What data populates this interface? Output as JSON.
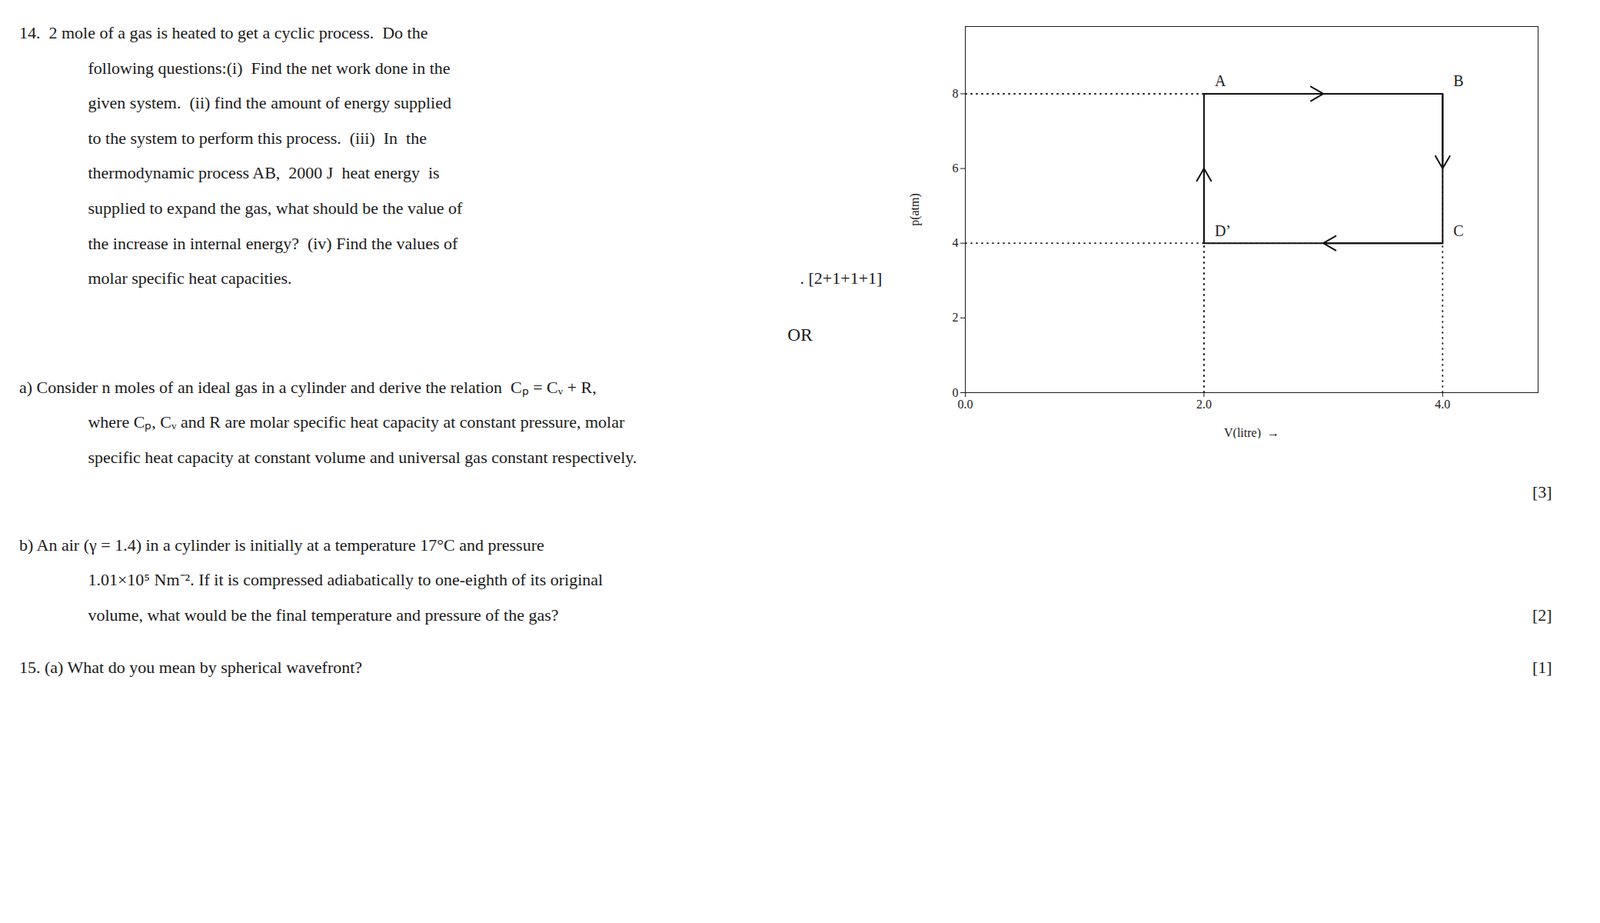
{
  "chart_data": {
    "type": "line",
    "xlabel": "V(litre)  →",
    "ylabel": "p(atm)",
    "xlim": [
      0,
      4.8
    ],
    "ylim": [
      0,
      9.8
    ],
    "xticks": [
      0,
      2,
      4
    ],
    "yticks": [
      0,
      2,
      4,
      6,
      8
    ],
    "x": [
      2,
      4,
      4,
      2,
      2
    ],
    "values": [
      8,
      8,
      4,
      4,
      8
    ],
    "color": "#111111",
    "annotations": [
      {
        "text": "A",
        "x": 2,
        "y": 8
      },
      {
        "text": "B",
        "x": 4,
        "y": 8
      },
      {
        "text": "C",
        "x": 4,
        "y": 4
      },
      {
        "text": "D’",
        "x": 2,
        "y": 4
      },
      {
        "text": "14.  2 mole of a gas is heated to get a cyclic process.  Do the"
      },
      {
        "text": "following questions:(i)  Find the net work done in the"
      },
      {
        "text": "given system.  (ii) find the amount of energy supplied"
      },
      {
        "text": "to the system to perform this process.  (iii)  In  the"
      },
      {
        "text": "thermodynamic process AB,  2000 J  heat energy  is"
      },
      {
        "text": "supplied to expand the gas, what should be the value of"
      },
      {
        "text": "the increase in internal energy?  (iv) Find the values of"
      },
      {
        "text": "molar specific heat capacities."
      },
      {
        "text": ". [2+1+1+1]"
      },
      {
        "text": "OR"
      },
      {
        "text": "a) Consider n moles of an ideal gas in a cylinder and derive the relation  Cₚ = Cᵥ + R,"
      },
      {
        "text": "where Cₚ, Cᵥ and R are molar specific heat capacity at constant pressure, molar"
      },
      {
        "text": "specific heat capacity at constant volume and universal gas constant respectively."
      },
      {
        "text": "[3]"
      },
      {
        "text": "b) An air (γ = 1.4) in a cylinder is initially at a temperature 17°C and pressure"
      },
      {
        "text": "1.01×10⁵ Nm⁻². If it is compressed adiabatically to one-eighth of its original"
      },
      {
        "text": "volume, what would be the final temperature and pressure of the gas?"
      },
      {
        "text": "[2]"
      },
      {
        "text": "15. (a) What do you mean by spherical wavefront?"
      },
      {
        "text": "[1]"
      }
    ]
  }
}
